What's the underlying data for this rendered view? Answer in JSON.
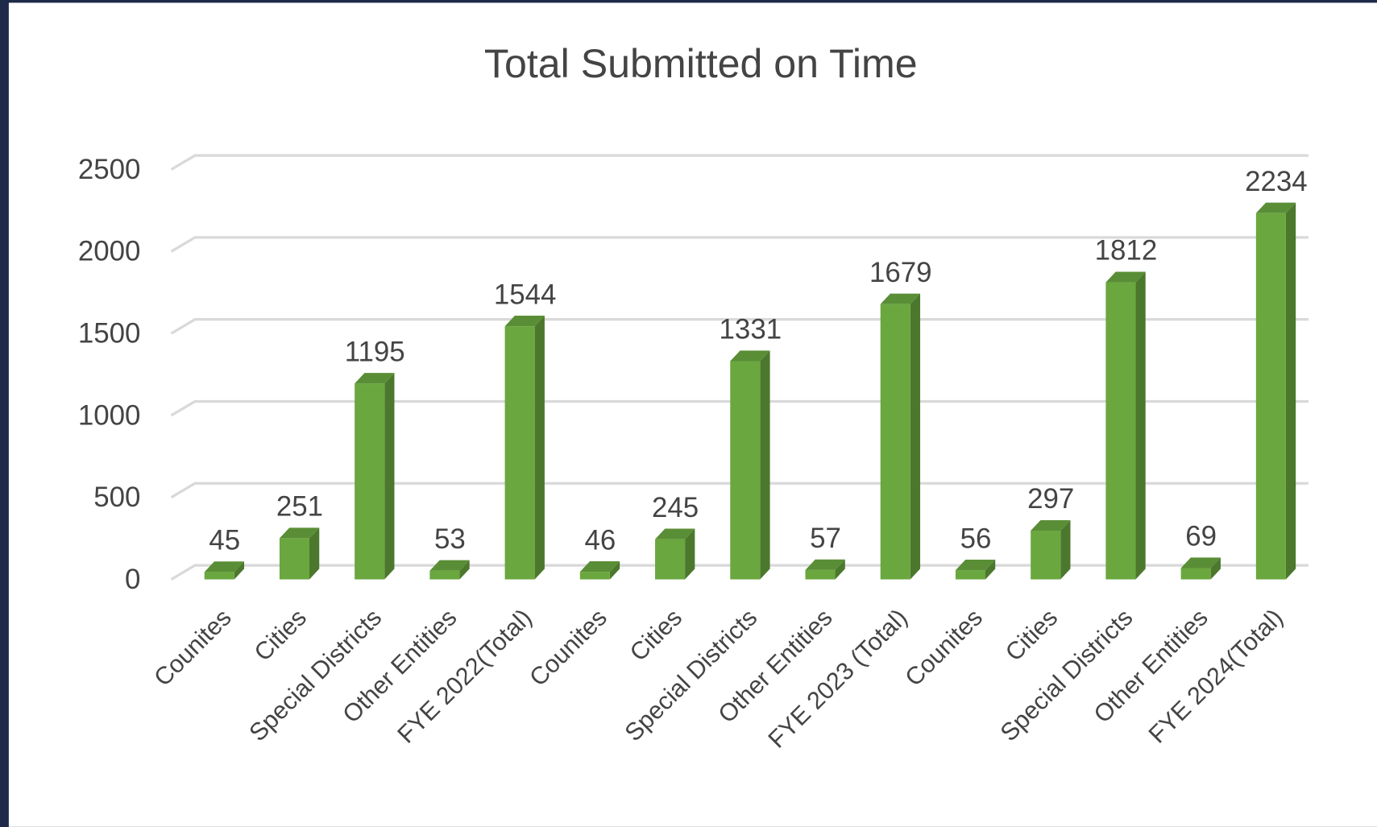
{
  "chart_data": {
    "type": "bar",
    "title": "Total Submitted on Time",
    "categories": [
      "Counites",
      "Cities",
      "Special Districts",
      "Other Entities",
      "FYE 2022(Total)",
      "Counites",
      "Cities",
      "Special Districts",
      "Other Entities",
      "FYE 2023 (Total)",
      "Counites",
      "Cities",
      "Special Districts",
      "Other Entities",
      "FYE 2024(Total)"
    ],
    "values": [
      45,
      251,
      1195,
      53,
      1544,
      46,
      245,
      1331,
      57,
      1679,
      56,
      297,
      1812,
      69,
      2234
    ],
    "color": "#6aa73f",
    "ylim": [
      0,
      2500
    ],
    "yticks": [
      0,
      500,
      1000,
      1500,
      2000,
      2500
    ],
    "grid": true
  }
}
